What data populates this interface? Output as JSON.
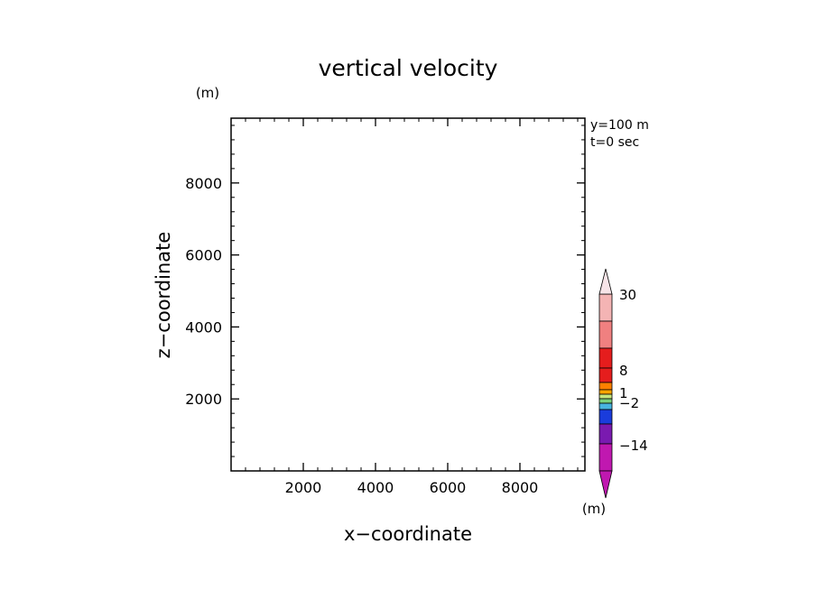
{
  "chart_data": {
    "type": "heatmap",
    "title": "vertical velocity",
    "xlabel": "x−coordinate",
    "ylabel": "z−coordinate",
    "x_unit": "(m)",
    "y_unit": "(m)",
    "annotations": [
      "y=100 m",
      "t=0 sec"
    ],
    "xlim": [
      0,
      9800
    ],
    "ylim": [
      0,
      9800
    ],
    "xticks": [
      2000,
      4000,
      6000,
      8000
    ],
    "yticks": [
      2000,
      4000,
      6000,
      8000
    ],
    "x_tick_labels": [
      "2000",
      "4000",
      "6000",
      "8000"
    ],
    "y_tick_labels": [
      "2000",
      "4000",
      "6000",
      "8000"
    ],
    "minor_tick_step": 400,
    "grid": false,
    "values": [],
    "colorbar": {
      "labels": [
        "30",
        "8",
        "1",
        "−2",
        "−14"
      ],
      "upper_extension_color": "#f7e4e8",
      "lower_extension_color": "#c018b0",
      "colors": [
        "#c018b0",
        "#c018b0",
        "#7a1ab0",
        "#7a1ab0",
        "#0a1a9a",
        "#1a3cdc",
        "#48b4e0",
        "#7bd07b",
        "#c6e67e",
        "#ffa500",
        "#ff8000",
        "#e51d1d",
        "#e51d1d",
        "#f08080",
        "#f4b4b4"
      ]
    }
  }
}
